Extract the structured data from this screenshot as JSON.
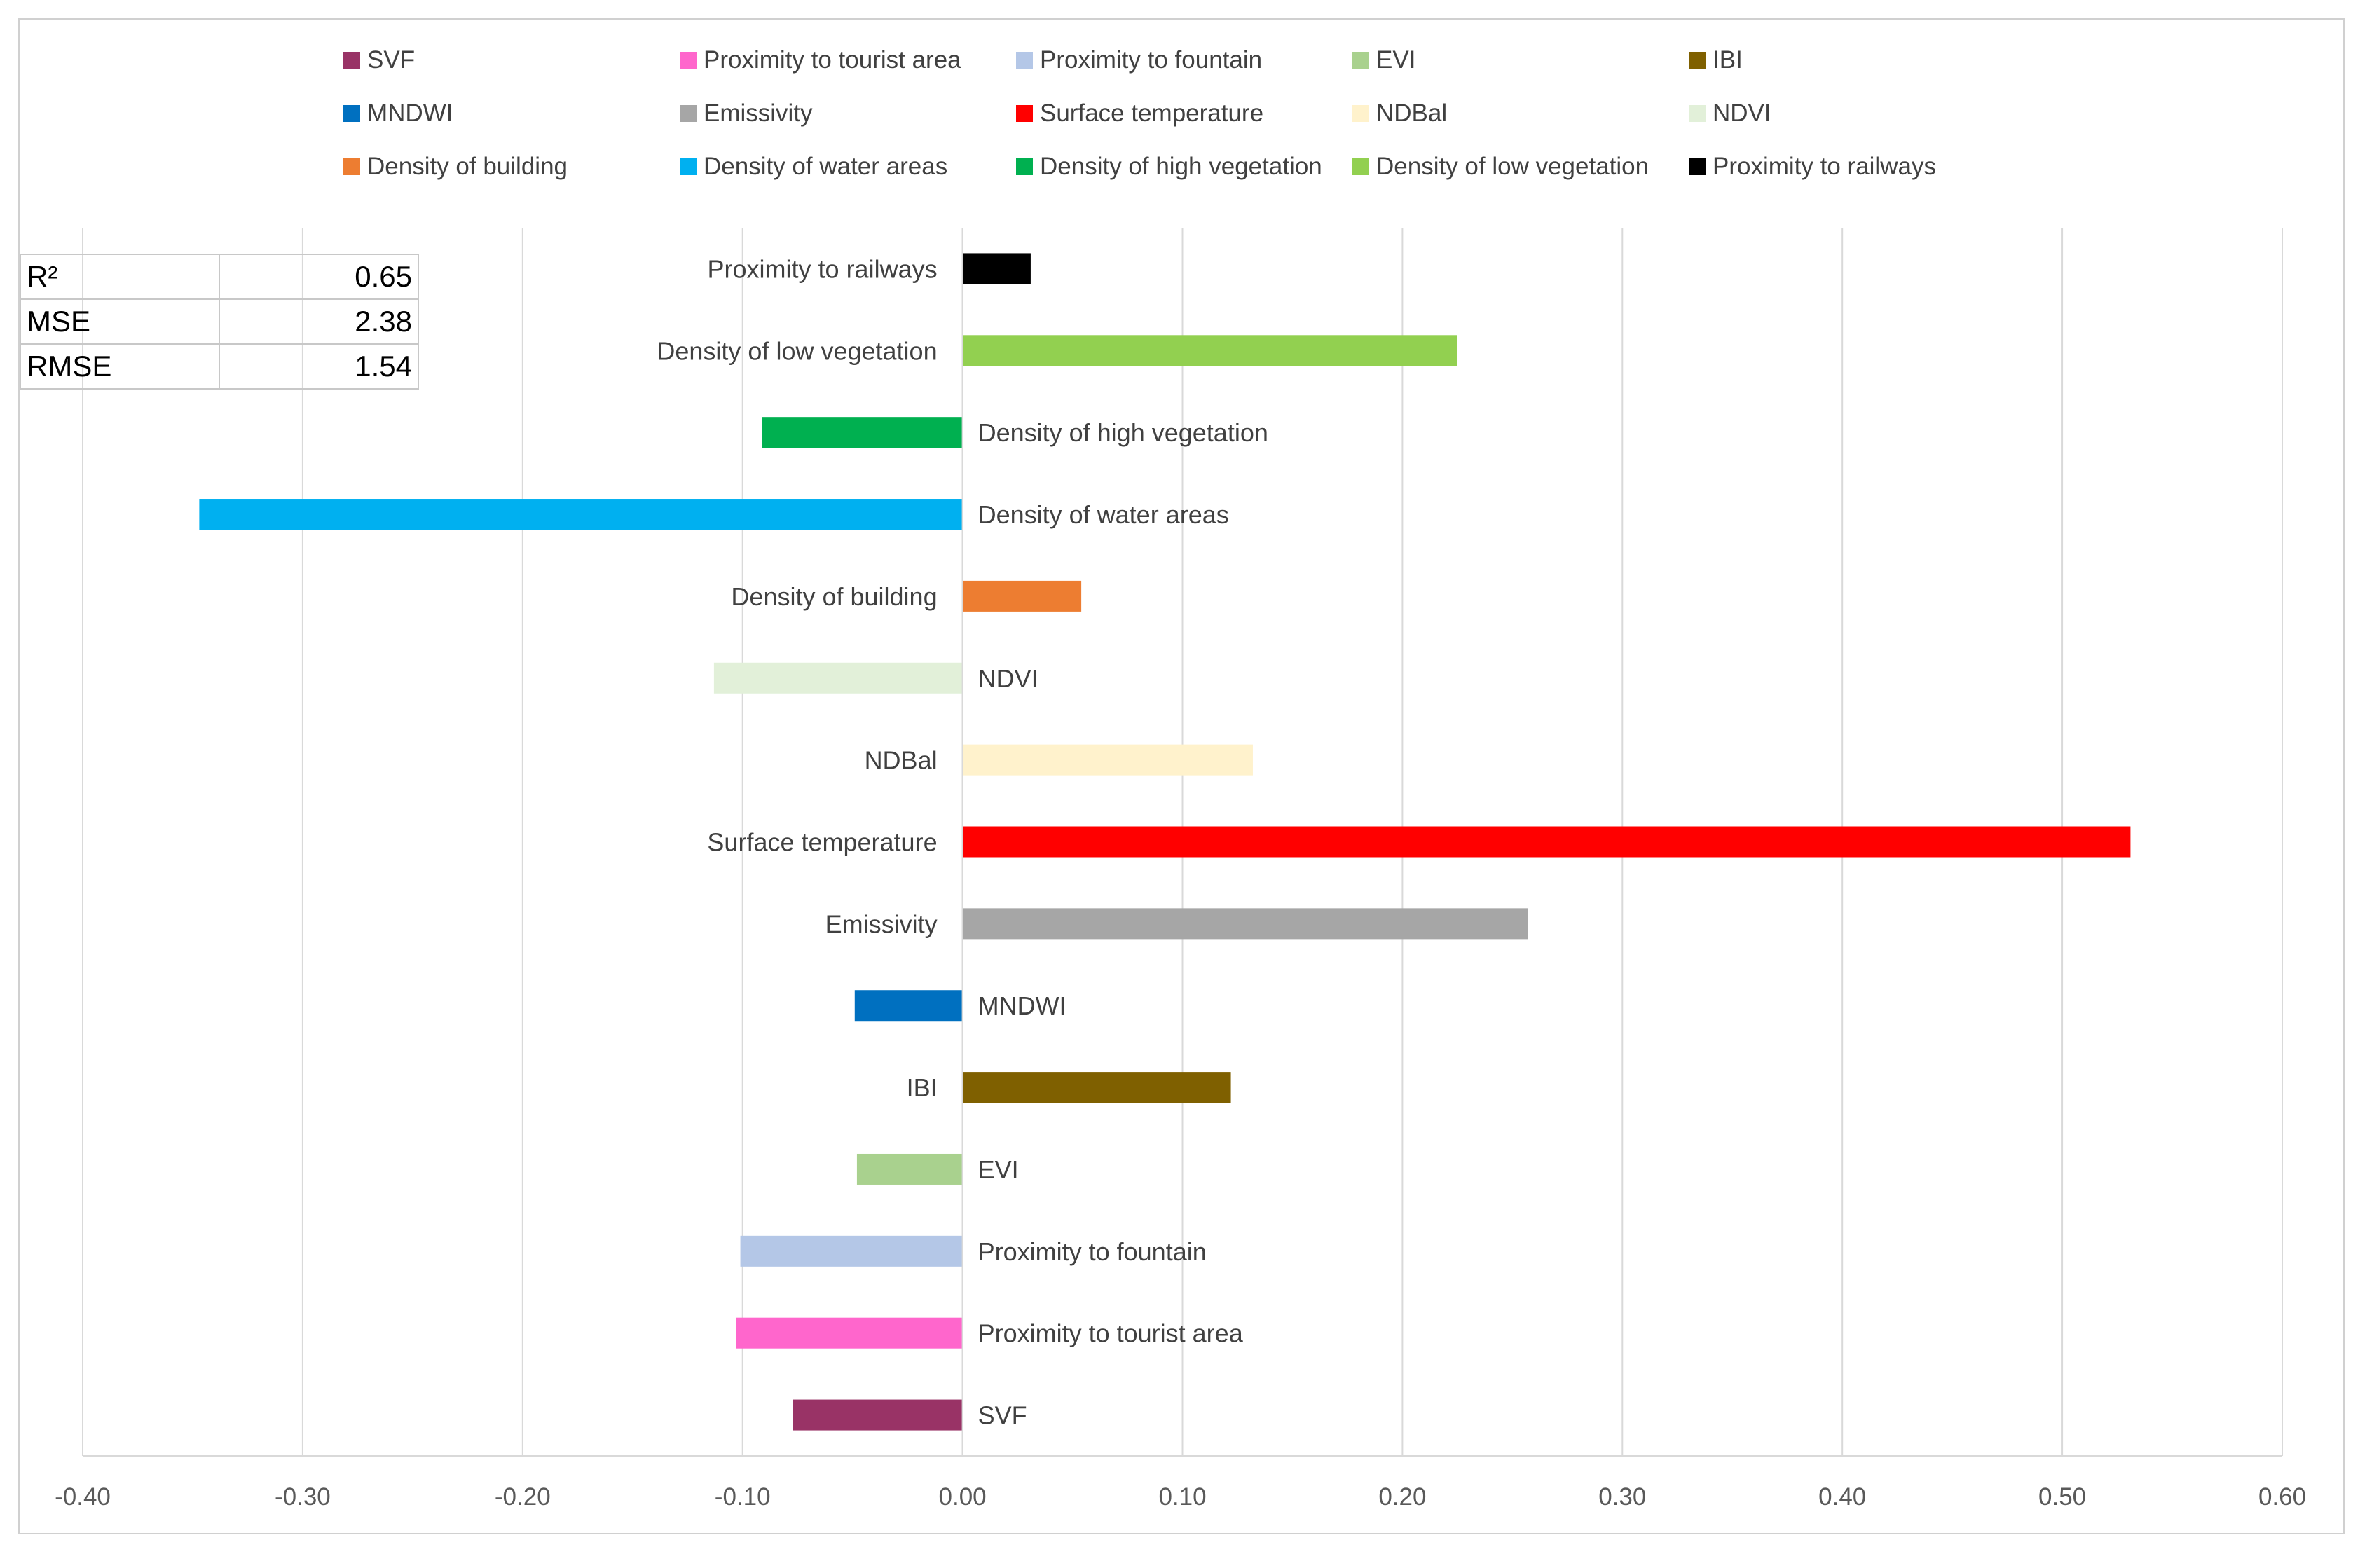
{
  "chart_data": {
    "type": "bar",
    "orientation": "horizontal",
    "title": "",
    "xlabel": "",
    "ylabel": "",
    "xlim": [
      -0.4,
      0.6
    ],
    "grid": true,
    "x_ticks": [
      "-0.40",
      "-0.30",
      "-0.20",
      "-0.10",
      "0.00",
      "0.10",
      "0.20",
      "0.30",
      "0.40",
      "0.50",
      "0.60"
    ],
    "x_tick_values": [
      -0.4,
      -0.3,
      -0.2,
      -0.1,
      0.0,
      0.1,
      0.2,
      0.3,
      0.4,
      0.5,
      0.6
    ],
    "categories": [
      "SVF",
      "Proximity to tourist area",
      "Proximity to fountain",
      "EVI",
      "IBI",
      "MNDWI",
      "Emissivity",
      "Surface temperature",
      "NDBal",
      "NDVI",
      "Density of building",
      "Density of water areas",
      "Density of high vegetation",
      "Density of  low vegetation",
      "Proximity to railways"
    ],
    "values": [
      -0.077,
      -0.103,
      -0.101,
      -0.048,
      0.122,
      -0.049,
      0.257,
      0.531,
      0.132,
      -0.113,
      0.054,
      -0.347,
      -0.091,
      0.225,
      0.031
    ],
    "colors": [
      "#993366",
      "#ff66cc",
      "#b4c7e7",
      "#a9d18e",
      "#7f6000",
      "#0070c0",
      "#a6a6a6",
      "#ff0000",
      "#fff2cc",
      "#e2f0d9",
      "#ed7d31",
      "#00b0f0",
      "#00b050",
      "#92d050",
      "#000000"
    ],
    "legend": {
      "placement": "top",
      "rows": [
        [
          "SVF",
          "Proximity to tourist area",
          "Proximity to fountain",
          "EVI",
          "IBI"
        ],
        [
          "MNDWI",
          "Emissivity",
          "Surface temperature",
          "NDBal",
          "NDVI"
        ],
        [
          "Density of building",
          "Density of water areas",
          "Density of high vegetation",
          "Density of  low vegetation",
          "Proximity to railways"
        ]
      ]
    }
  },
  "stats_table": [
    {
      "label": "R²",
      "value": "0.65"
    },
    {
      "label": "MSE",
      "value": "2.38"
    },
    {
      "label": "RMSE",
      "value": "1.54"
    }
  ]
}
